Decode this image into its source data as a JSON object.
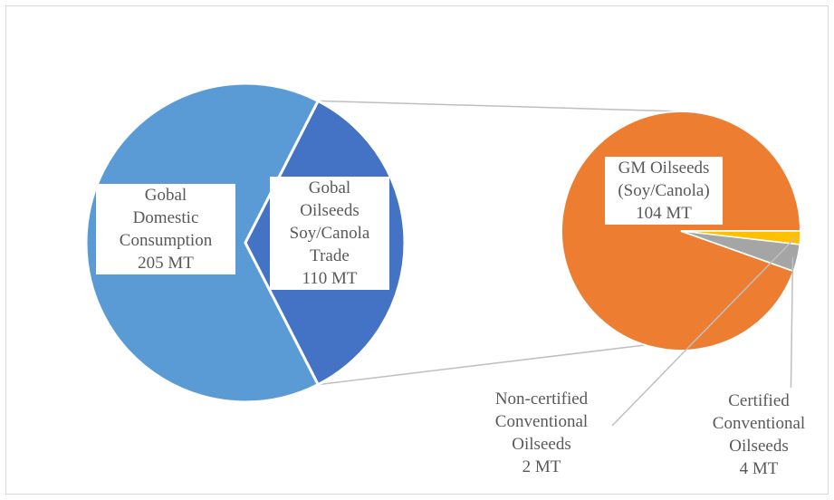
{
  "chart_data": {
    "type": "pie",
    "subtype": "pie-of-pie",
    "main_pie": {
      "slices": [
        {
          "label": "Gobal Domestic Consumption 205 MT",
          "value": 205,
          "unit": "MT",
          "color": "#5b9bd5"
        },
        {
          "label": "Gobal Oilseeds Soy/Canola Trade 110 MT",
          "value": 110,
          "unit": "MT",
          "color": "#4472c4"
        }
      ]
    },
    "secondary_pie": {
      "slices": [
        {
          "label": "GM Oilseeds (Soy/Canola) 104 MT",
          "value": 104,
          "unit": "MT",
          "color": "#ed7d31"
        },
        {
          "label": "Non-certified Conventional Oilseeds 2 MT",
          "value": 2,
          "unit": "MT",
          "color": "#ffc000"
        },
        {
          "label": "Certified Conventional Oilseeds 4 MT",
          "value": 4,
          "unit": "MT",
          "color": "#a5a5a5"
        }
      ]
    },
    "labels": {
      "domestic": "Gobal\nDomestic\nConsumption\n205 MT",
      "trade": "Gobal\nOilseeds\nSoy/Canola\nTrade\n110 MT",
      "gm": "GM Oilseeds\n(Soy/Canola)\n104 MT",
      "noncert": "Non-certified\nConventional\nOilseeds\n2 MT",
      "cert": "Certified\nConventional\nOilseeds\n4 MT"
    }
  }
}
